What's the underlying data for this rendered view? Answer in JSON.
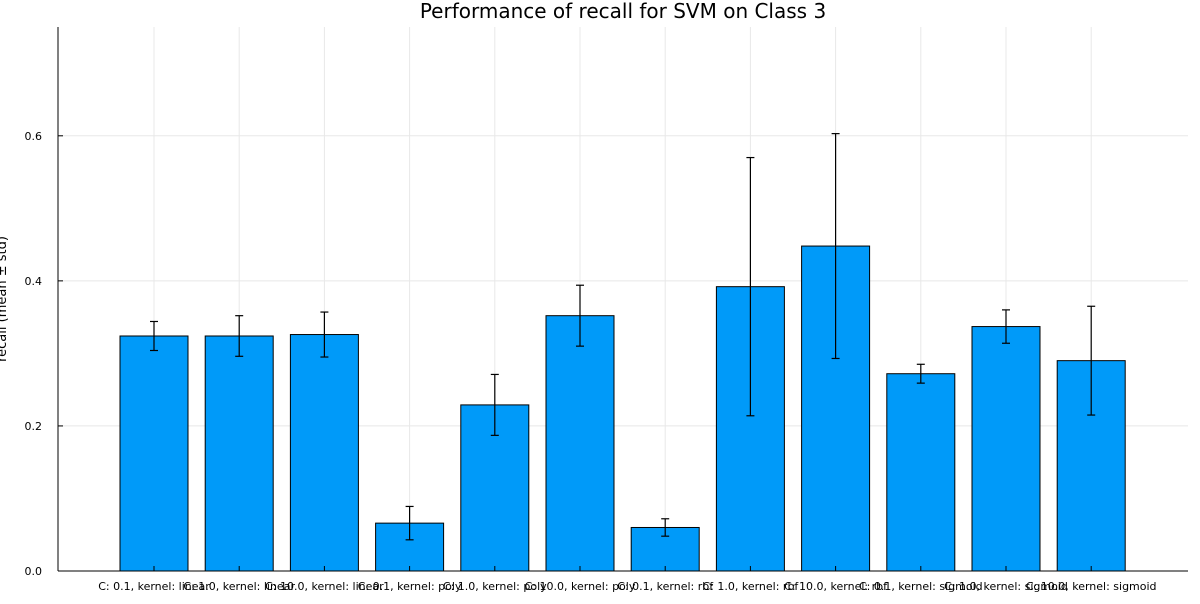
{
  "chart_data": {
    "type": "bar",
    "title": "Performance of recall for SVM on Class 3",
    "xlabel": "",
    "ylabel": "recall (mean ± std)",
    "ylim": [
      0,
      0.75
    ],
    "yticks": [
      0.0,
      0.2,
      0.4,
      0.6
    ],
    "ytick_labels": [
      "0.0",
      "0.2",
      "0.4",
      "0.6"
    ],
    "grid": true,
    "bar_color": "#009af9",
    "categories": [
      "C: 0.1, kernel: linear",
      "C: 1.0, kernel: linear",
      "C: 10.0, kernel: linear",
      "C: 0.1, kernel: poly",
      "C: 1.0, kernel: poly",
      "C: 10.0, kernel: poly",
      "C: 0.1, kernel: rbf",
      "C: 1.0, kernel: rbf",
      "C: 10.0, kernel: rbf",
      "C: 0.1, kernel: sigmoid",
      "C: 1.0, kernel: sigmoid",
      "C: 10.0, kernel: sigmoid"
    ],
    "values": [
      0.324,
      0.324,
      0.326,
      0.066,
      0.229,
      0.352,
      0.06,
      0.392,
      0.448,
      0.272,
      0.337,
      0.29
    ],
    "errors": [
      0.02,
      0.028,
      0.031,
      0.023,
      0.042,
      0.042,
      0.012,
      0.178,
      0.155,
      0.013,
      0.023,
      0.075
    ]
  }
}
